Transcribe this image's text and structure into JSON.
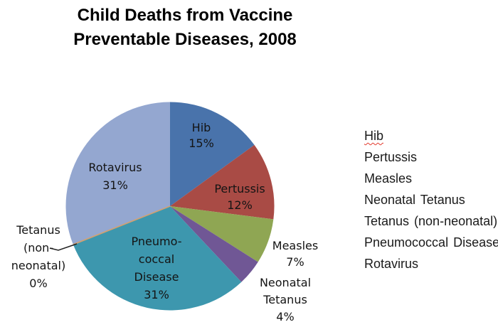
{
  "page": {
    "background": "#ffffff"
  },
  "chart_data": {
    "type": "pie",
    "title": "Child Deaths from Vaccine Preventable Diseases, 2008",
    "title_lines": [
      "Child Deaths from Vaccine",
      "Preventable Diseases, 2008"
    ],
    "direction": "clockwise",
    "start_angle_deg": 0,
    "categories": [
      "Hib",
      "Pertussis",
      "Measles",
      "Neonatal Tetanus",
      "Pneumococcal Disease",
      "Tetanus (non-neonatal)",
      "Rotavirus"
    ],
    "values": [
      15,
      12,
      7,
      4,
      31,
      0,
      31
    ],
    "percent_labels": [
      "15%",
      "12%",
      "7%",
      "4%",
      "31%",
      "0%",
      "31%"
    ],
    "colors": [
      "#4973AB",
      "#A94B45",
      "#8FA653",
      "#705795",
      "#3D97AE",
      "#D2A171",
      "#94A7D0"
    ],
    "legend_position": "right"
  },
  "slice_labels": {
    "hib": {
      "lines": [
        "Hib",
        "15%"
      ]
    },
    "pertussis": {
      "lines": [
        "Pertussis",
        "12%"
      ]
    },
    "measles": {
      "lines": [
        "Measles",
        "7%"
      ]
    },
    "neonatal": {
      "lines": [
        "Neonatal",
        "Tetanus",
        "4%"
      ]
    },
    "pneumo": {
      "lines": [
        "Pneumo-",
        "coccal",
        "Disease",
        "31%"
      ]
    },
    "rotavirus": {
      "lines": [
        "Rotavirus",
        "31%"
      ]
    },
    "tetanus": {
      "lines": [
        "Tetanus",
        "(non-",
        "neonatal)",
        "0%"
      ]
    }
  },
  "legend": {
    "items": [
      "Hib",
      "Pertussis",
      "Measles",
      "Neonatal Tetanus",
      "Tetanus (non-neonatal)",
      "Pneumococcal Disease",
      "Rotavirus"
    ]
  }
}
